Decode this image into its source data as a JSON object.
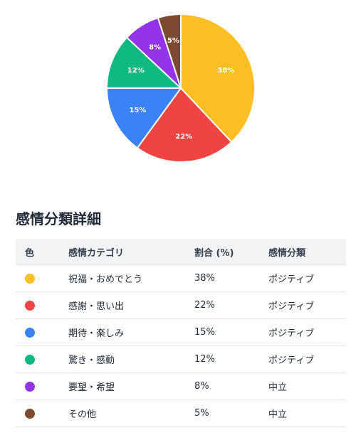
{
  "chart_data": {
    "type": "pie",
    "title": "",
    "slices": [
      {
        "label": "祝福・おめでとう",
        "value": 38,
        "display": "38%",
        "color": "#fbbf24"
      },
      {
        "label": "感謝・思い出",
        "value": 22,
        "display": "22%",
        "color": "#ef4444"
      },
      {
        "label": "期待・楽しみ",
        "value": 15,
        "display": "15%",
        "color": "#3b82f6"
      },
      {
        "label": "驚き・感動",
        "value": 12,
        "display": "12%",
        "color": "#10b981"
      },
      {
        "label": "要望・希望",
        "value": 8,
        "display": "8%",
        "color": "#9333ea"
      },
      {
        "label": "その他",
        "value": 5,
        "display": "5%",
        "color": "#7c4a2d"
      }
    ]
  },
  "details": {
    "title": "感情分類詳細",
    "headers": {
      "color": "色",
      "category": "感情カテゴリ",
      "ratio": "割合 (%)",
      "classification": "感情分類"
    },
    "rows": [
      {
        "color": "#fbbf24",
        "category": "祝福・おめでとう",
        "ratio": "38%",
        "classification": "ポジティブ"
      },
      {
        "color": "#ef4444",
        "category": "感謝・思い出",
        "ratio": "22%",
        "classification": "ポジティブ"
      },
      {
        "color": "#3b82f6",
        "category": "期待・楽しみ",
        "ratio": "15%",
        "classification": "ポジティブ"
      },
      {
        "color": "#10b981",
        "category": "驚き・感動",
        "ratio": "12%",
        "classification": "ポジティブ"
      },
      {
        "color": "#9333ea",
        "category": "要望・希望",
        "ratio": "8%",
        "classification": "中立"
      },
      {
        "color": "#7c4a2d",
        "category": "その他",
        "ratio": "5%",
        "classification": "中立"
      }
    ]
  }
}
